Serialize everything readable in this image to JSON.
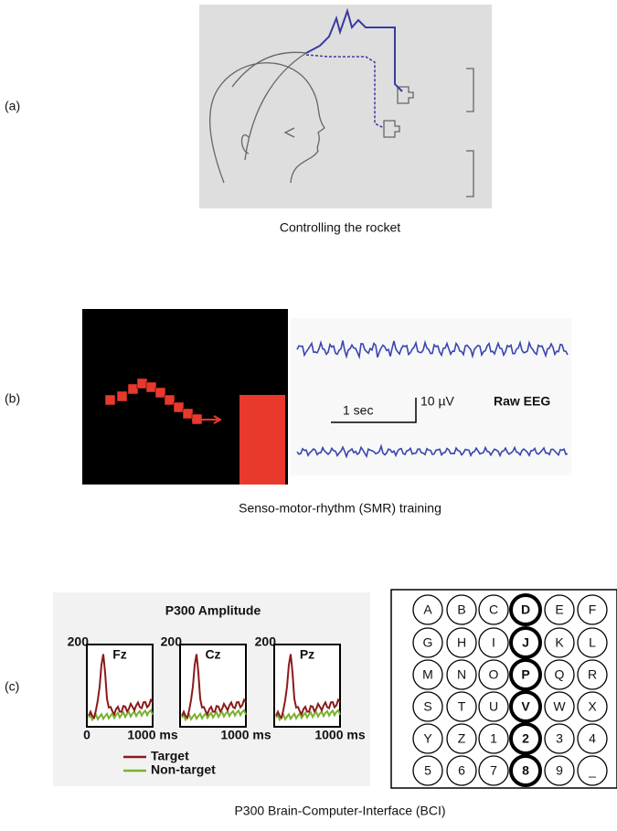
{
  "panels": [
    {
      "label": "(a)",
      "caption": "Controlling the rocket"
    },
    {
      "label": "(b)",
      "caption": "Senso-motor-rhythm (SMR) training",
      "scale": {
        "time": "1 sec",
        "amplitude": "10 µV",
        "signal": "Raw EEG"
      }
    },
    {
      "label": "(c)",
      "caption": "P300 Brain-Computer-Interface (BCI)",
      "plot": {
        "title": "P300 Amplitude",
        "channels": [
          "Fz",
          "Cz",
          "Pz"
        ],
        "y_max_label": "200",
        "x_min_label": "0",
        "x_max_label": "1000 ms",
        "legend": [
          "Target",
          "Non-target"
        ]
      },
      "speller": [
        [
          "A",
          "B",
          "C",
          "D",
          "E",
          "F"
        ],
        [
          "G",
          "H",
          "I",
          "J",
          "K",
          "L"
        ],
        [
          "M",
          "N",
          "O",
          "P",
          "Q",
          "R"
        ],
        [
          "S",
          "T",
          "U",
          "V",
          "W",
          "X"
        ],
        [
          "Y",
          "Z",
          "1",
          "2",
          "3",
          "4"
        ],
        [
          "5",
          "6",
          "7",
          "8",
          "9",
          "_"
        ]
      ]
    }
  ]
}
